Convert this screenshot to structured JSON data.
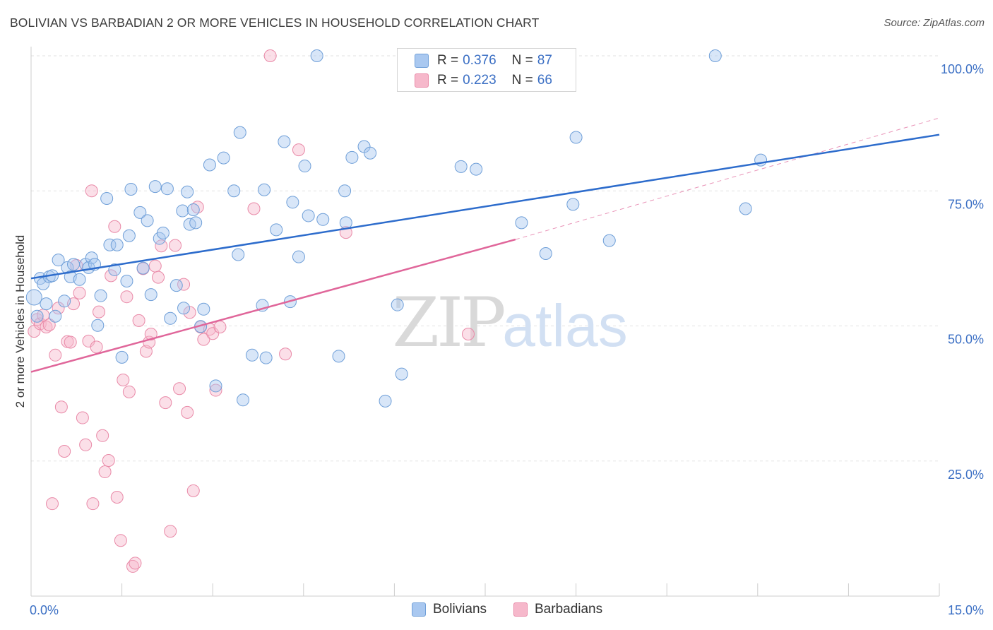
{
  "header": {
    "title": "BOLIVIAN VS BARBADIAN 2 OR MORE VEHICLES IN HOUSEHOLD CORRELATION CHART",
    "source": "Source: ZipAtlas.com"
  },
  "watermark": {
    "zip": "ZIP",
    "atlas": "atlas"
  },
  "legend_top": {
    "rows": [
      {
        "r_label": "R =",
        "r_value": "0.376",
        "n_label": "N =",
        "n_value": "87"
      },
      {
        "r_label": "R =",
        "r_value": "0.223",
        "n_label": "N =",
        "n_value": "66"
      }
    ]
  },
  "legend_bottom": {
    "items": [
      {
        "label": "Bolivians"
      },
      {
        "label": "Barbadians"
      }
    ]
  },
  "colors": {
    "blue_fill": "#a9c8f0",
    "blue_stroke": "#6f9fd8",
    "blue_line": "#2d6ccc",
    "pink_fill": "#f6b8cb",
    "pink_stroke": "#e98aa8",
    "pink_line": "#e0669a",
    "axis_text": "#3b6fc4",
    "grid": "#e2e2e2"
  },
  "chart_data": {
    "type": "scatter",
    "title": "BOLIVIAN VS BARBADIAN 2 OR MORE VEHICLES IN HOUSEHOLD CORRELATION CHART",
    "xlabel": "",
    "ylabel": "2 or more Vehicles in Household",
    "xlim": [
      0,
      15
    ],
    "ylim": [
      0,
      100
    ],
    "x_tick_labels": [
      "0.0%",
      "15.0%"
    ],
    "y_tick_labels": [
      "25.0%",
      "50.0%",
      "75.0%",
      "100.0%"
    ],
    "y_ticks": [
      25,
      50,
      75,
      100
    ],
    "grid": true,
    "legend_position": "top-center",
    "series": [
      {
        "name": "Bolivians",
        "color": "#a9c8f0",
        "trend": {
          "x": [
            0,
            15
          ],
          "y": [
            58.8,
            85.4
          ]
        },
        "points": [
          [
            0.05,
            55.3
          ],
          [
            0.1,
            51.8
          ],
          [
            0.15,
            58.8
          ],
          [
            0.2,
            57.8
          ],
          [
            0.25,
            54.1
          ],
          [
            0.3,
            59.1
          ],
          [
            0.35,
            59.3
          ],
          [
            0.4,
            51.8
          ],
          [
            0.45,
            62.2
          ],
          [
            0.55,
            54.6
          ],
          [
            0.6,
            60.8
          ],
          [
            0.65,
            59.1
          ],
          [
            0.7,
            61.4
          ],
          [
            0.8,
            58.6
          ],
          [
            0.9,
            61.4
          ],
          [
            0.95,
            60.8
          ],
          [
            1.0,
            62.6
          ],
          [
            1.05,
            61.4
          ],
          [
            1.1,
            50.1
          ],
          [
            1.15,
            55.6
          ],
          [
            1.25,
            73.6
          ],
          [
            1.3,
            65.0
          ],
          [
            1.38,
            60.4
          ],
          [
            1.42,
            65.0
          ],
          [
            1.5,
            44.2
          ],
          [
            1.58,
            58.3
          ],
          [
            1.62,
            66.7
          ],
          [
            1.65,
            75.3
          ],
          [
            1.8,
            71.0
          ],
          [
            1.85,
            60.7
          ],
          [
            1.92,
            69.5
          ],
          [
            1.98,
            55.8
          ],
          [
            2.05,
            75.8
          ],
          [
            2.12,
            66.2
          ],
          [
            2.18,
            67.2
          ],
          [
            2.25,
            75.4
          ],
          [
            2.3,
            51.4
          ],
          [
            2.4,
            57.5
          ],
          [
            2.5,
            71.3
          ],
          [
            2.52,
            53.3
          ],
          [
            2.58,
            74.8
          ],
          [
            2.62,
            68.8
          ],
          [
            2.68,
            71.5
          ],
          [
            2.72,
            69.1
          ],
          [
            2.8,
            49.9
          ],
          [
            2.85,
            53.1
          ],
          [
            2.95,
            79.8
          ],
          [
            3.05,
            38.9
          ],
          [
            3.18,
            81.1
          ],
          [
            3.35,
            75.0
          ],
          [
            3.42,
            63.2
          ],
          [
            3.45,
            85.8
          ],
          [
            3.5,
            36.3
          ],
          [
            3.65,
            44.6
          ],
          [
            3.82,
            53.8
          ],
          [
            3.85,
            75.2
          ],
          [
            3.88,
            44.1
          ],
          [
            4.05,
            67.8
          ],
          [
            4.18,
            84.1
          ],
          [
            4.28,
            54.5
          ],
          [
            4.32,
            72.9
          ],
          [
            4.42,
            62.8
          ],
          [
            4.52,
            79.6
          ],
          [
            4.58,
            70.4
          ],
          [
            4.72,
            100.0
          ],
          [
            4.82,
            69.7
          ],
          [
            5.08,
            44.4
          ],
          [
            5.18,
            75.0
          ],
          [
            5.2,
            69.1
          ],
          [
            5.3,
            81.2
          ],
          [
            5.5,
            83.2
          ],
          [
            5.6,
            82.0
          ],
          [
            5.85,
            36.1
          ],
          [
            6.05,
            53.9
          ],
          [
            6.12,
            41.1
          ],
          [
            7.1,
            79.5
          ],
          [
            7.35,
            79.0
          ],
          [
            8.1,
            69.1
          ],
          [
            8.5,
            63.4
          ],
          [
            8.95,
            72.5
          ],
          [
            9.0,
            84.9
          ],
          [
            9.55,
            65.8
          ],
          [
            11.3,
            100.0
          ],
          [
            11.8,
            71.7
          ],
          [
            12.05,
            80.7
          ]
        ]
      },
      {
        "name": "Barbadians",
        "color": "#f6b8cb",
        "trend": {
          "x": [
            0,
            8.0
          ],
          "y": [
            41.5,
            66.0
          ]
        },
        "trend_dashed": {
          "x": [
            8.0,
            15
          ],
          "y": [
            66.0,
            88.5
          ]
        },
        "points": [
          [
            0.05,
            49.0
          ],
          [
            0.1,
            51.2
          ],
          [
            0.15,
            50.4
          ],
          [
            0.2,
            52.0
          ],
          [
            0.25,
            49.8
          ],
          [
            0.3,
            50.2
          ],
          [
            0.35,
            17.1
          ],
          [
            0.4,
            44.6
          ],
          [
            0.45,
            53.3
          ],
          [
            0.5,
            35.0
          ],
          [
            0.55,
            26.8
          ],
          [
            0.6,
            47.1
          ],
          [
            0.65,
            47.0
          ],
          [
            0.7,
            54.1
          ],
          [
            0.75,
            61.2
          ],
          [
            0.8,
            56.1
          ],
          [
            0.85,
            33.0
          ],
          [
            0.9,
            28.0
          ],
          [
            0.95,
            47.2
          ],
          [
            1.0,
            75.0
          ],
          [
            1.02,
            17.1
          ],
          [
            1.08,
            46.1
          ],
          [
            1.12,
            52.6
          ],
          [
            1.18,
            29.7
          ],
          [
            1.22,
            23.0
          ],
          [
            1.28,
            25.1
          ],
          [
            1.32,
            59.3
          ],
          [
            1.38,
            68.4
          ],
          [
            1.42,
            18.3
          ],
          [
            1.48,
            10.3
          ],
          [
            1.52,
            40.0
          ],
          [
            1.58,
            55.4
          ],
          [
            1.62,
            37.8
          ],
          [
            1.68,
            5.5
          ],
          [
            1.72,
            6.1
          ],
          [
            1.78,
            51.0
          ],
          [
            1.85,
            60.6
          ],
          [
            1.9,
            45.3
          ],
          [
            1.95,
            47.0
          ],
          [
            1.98,
            48.5
          ],
          [
            2.05,
            61.1
          ],
          [
            2.1,
            59.0
          ],
          [
            2.15,
            64.8
          ],
          [
            2.22,
            35.8
          ],
          [
            2.3,
            12.0
          ],
          [
            2.38,
            64.9
          ],
          [
            2.45,
            38.4
          ],
          [
            2.52,
            57.7
          ],
          [
            2.58,
            34.0
          ],
          [
            2.62,
            52.5
          ],
          [
            2.68,
            19.5
          ],
          [
            2.75,
            72.0
          ],
          [
            2.8,
            49.8
          ],
          [
            2.85,
            47.5
          ],
          [
            2.95,
            49.4
          ],
          [
            3.0,
            48.6
          ],
          [
            3.05,
            38.1
          ],
          [
            3.12,
            49.8
          ],
          [
            3.68,
            71.7
          ],
          [
            3.95,
            100.0
          ],
          [
            4.2,
            44.8
          ],
          [
            4.42,
            82.6
          ],
          [
            5.2,
            67.3
          ],
          [
            7.22,
            48.5
          ]
        ]
      }
    ]
  }
}
